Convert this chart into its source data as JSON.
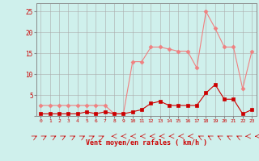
{
  "x": [
    0,
    1,
    2,
    3,
    4,
    5,
    6,
    7,
    8,
    9,
    10,
    11,
    12,
    13,
    14,
    15,
    16,
    17,
    18,
    19,
    20,
    21,
    22,
    23
  ],
  "rafales": [
    2.5,
    2.5,
    2.5,
    2.5,
    2.5,
    2.5,
    2.5,
    2.5,
    0.5,
    0.5,
    13,
    13,
    16.5,
    16.5,
    16,
    15.5,
    15.5,
    11.5,
    25,
    21,
    16.5,
    16.5,
    6.5,
    15.5
  ],
  "moyen": [
    0.5,
    0.5,
    0.5,
    0.5,
    0.5,
    1.0,
    0.5,
    1.0,
    0.5,
    0.5,
    1.0,
    1.5,
    3.0,
    3.5,
    2.5,
    2.5,
    2.5,
    2.5,
    5.5,
    7.5,
    4.0,
    4.0,
    0.5,
    1.5
  ],
  "bg_color": "#cff0ec",
  "grid_color": "#aaaaaa",
  "line_color_rafales": "#f08080",
  "line_color_moyen": "#cc0000",
  "xlabel": "Vent moyen/en rafales ( km/h )",
  "ylim": [
    0,
    27
  ],
  "xlim": [
    -0.5,
    23.5
  ],
  "yticks": [
    0,
    5,
    10,
    15,
    20,
    25
  ],
  "xticks": [
    0,
    1,
    2,
    3,
    4,
    5,
    6,
    7,
    8,
    9,
    10,
    11,
    12,
    13,
    14,
    15,
    16,
    17,
    18,
    19,
    20,
    21,
    22,
    23
  ],
  "tick_color": "#cc0000",
  "label_color": "#cc0000",
  "spine_color": "#888888",
  "markersize_rafales": 2.5,
  "markersize_moyen": 2.5,
  "linewidth": 0.8
}
